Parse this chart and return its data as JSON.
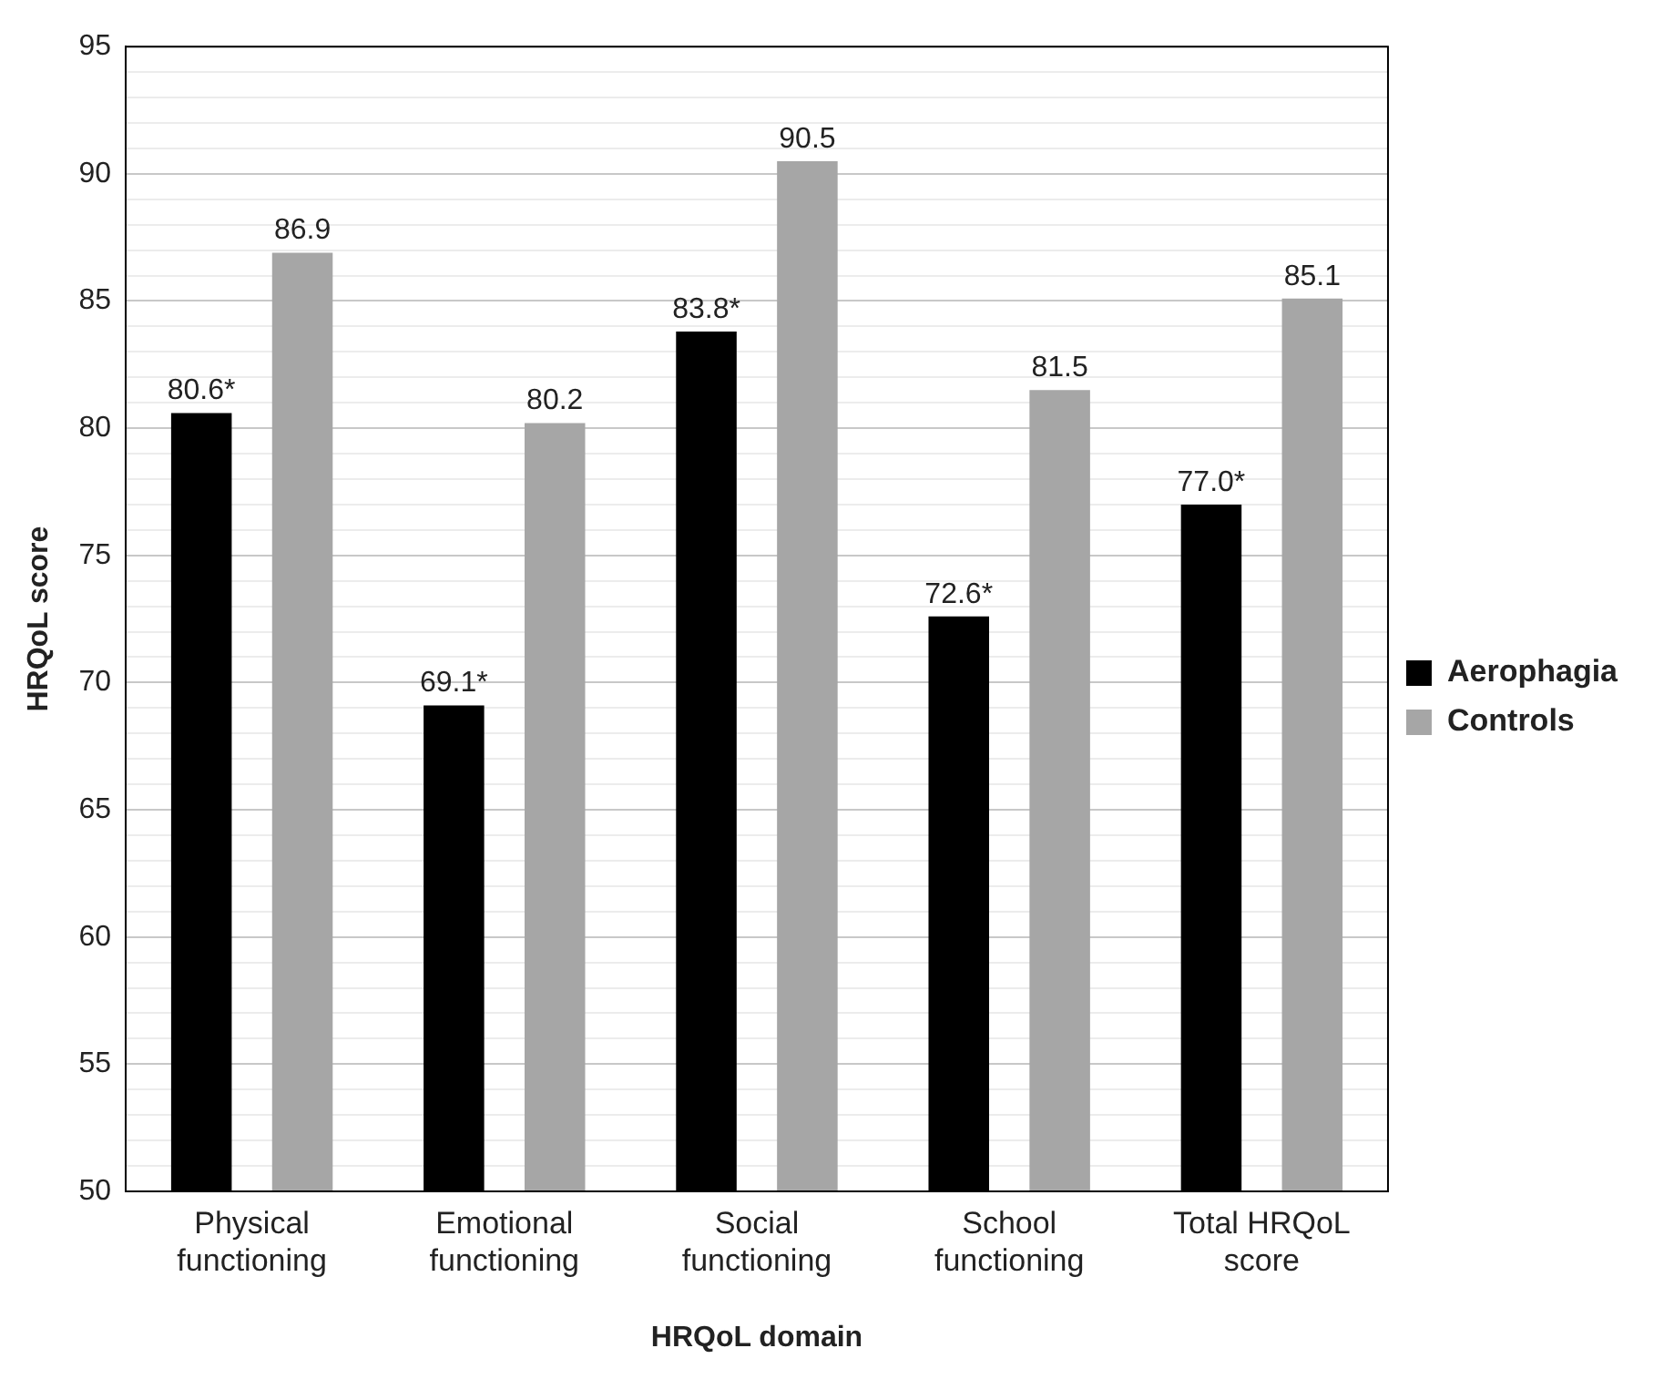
{
  "chart_data": {
    "type": "bar",
    "xlabel": "HRQoL domain",
    "ylabel": "HRQoL score",
    "categories": [
      "Physical functioning",
      "Emotional functioning",
      "Social functioning",
      "School functioning",
      "Total HRQoL score"
    ],
    "series": [
      {
        "name": "Aerophagia",
        "color": "#000000",
        "values": [
          80.6,
          69.1,
          83.8,
          72.6,
          77.0
        ],
        "value_labels": [
          "80.6*",
          "69.1*",
          "83.8*",
          "72.6*",
          "77.0*"
        ]
      },
      {
        "name": "Controls",
        "color": "#a6a6a6",
        "values": [
          86.9,
          80.2,
          90.5,
          81.5,
          85.1
        ],
        "value_labels": [
          "86.9",
          "80.2",
          "90.5",
          "81.5",
          "85.1"
        ]
      }
    ],
    "ylim": [
      50,
      95
    ],
    "yticks": [
      50,
      {
        "value": 51,
        "label": null
      },
      {
        "value": 52,
        "label": null
      },
      {
        "value": 53,
        "label": null
      },
      {
        "value": 54,
        "label": null
      },
      55,
      {
        "value": 56,
        "label": null
      },
      {
        "value": 57,
        "label": null
      },
      {
        "value": 58,
        "label": null
      },
      {
        "value": 59,
        "label": null
      },
      60,
      {
        "value": 61,
        "label": null
      },
      {
        "value": 62,
        "label": null
      },
      {
        "value": 63,
        "label": null
      },
      {
        "value": 64,
        "label": null
      },
      65,
      {
        "value": 66,
        "label": null
      },
      {
        "value": 67,
        "label": null
      },
      {
        "value": 68,
        "label": null
      },
      {
        "value": 69,
        "label": null
      },
      70,
      {
        "value": 71,
        "label": null
      },
      {
        "value": 72,
        "label": null
      },
      {
        "value": 73,
        "label": null
      },
      {
        "value": 74,
        "label": null
      },
      75,
      {
        "value": 76,
        "label": null
      },
      {
        "value": 77,
        "label": null
      },
      {
        "value": 78,
        "label": null
      },
      {
        "value": 79,
        "label": null
      },
      80,
      {
        "value": 81,
        "label": null
      },
      {
        "value": 82,
        "label": null
      },
      {
        "value": 83,
        "label": null
      },
      {
        "value": 84,
        "label": null
      },
      85,
      {
        "value": 86,
        "label": null
      },
      {
        "value": 87,
        "label": null
      },
      {
        "value": 88,
        "label": null
      },
      {
        "value": 89,
        "label": null
      },
      90,
      {
        "value": 91,
        "label": null
      },
      {
        "value": 92,
        "label": null
      },
      {
        "value": 93,
        "label": null
      },
      {
        "value": 94,
        "label": null
      },
      95
    ],
    "grid": "y",
    "legend": "right"
  }
}
